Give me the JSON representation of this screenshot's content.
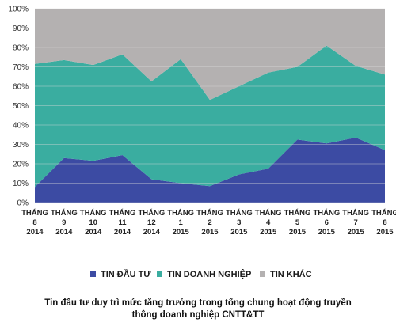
{
  "chart_data": {
    "type": "area",
    "stacked": true,
    "categories": [
      [
        "THÁNG",
        "8",
        "2014"
      ],
      [
        "THÁNG",
        "9",
        "2014"
      ],
      [
        "THÁNG",
        "10",
        "2014"
      ],
      [
        "THÁNG",
        "11",
        "2014"
      ],
      [
        "THÁNG",
        "12",
        "2014"
      ],
      [
        "THÁNG",
        "1",
        "2015"
      ],
      [
        "THÁNG",
        "2",
        "2015"
      ],
      [
        "THÁNG",
        "3",
        "2015"
      ],
      [
        "THÁNG",
        "4",
        "2015"
      ],
      [
        "THÁNG",
        "5",
        "2015"
      ],
      [
        "THÁNG",
        "6",
        "2015"
      ],
      [
        "THÁNG",
        "7",
        "2015"
      ],
      [
        "THÁNG",
        "8",
        "2015"
      ]
    ],
    "series": [
      {
        "name": "TIN ĐẦU TƯ",
        "color": "#3c4ba3",
        "values": [
          8,
          23,
          21.5,
          24.5,
          12,
          10,
          8.5,
          14.5,
          17.5,
          32.5,
          30.5,
          33.5,
          27
        ]
      },
      {
        "name": "TIN DOANH NGHIỆP",
        "color": "#3aada0",
        "values": [
          63.5,
          50.5,
          49.5,
          52,
          50.5,
          64,
          44.5,
          45.5,
          49.5,
          37.5,
          50.5,
          37,
          39
        ]
      },
      {
        "name": "TIN KHÁC",
        "color": "#b4b1b1",
        "values": [
          28.5,
          26.5,
          29,
          23.5,
          37.5,
          26,
          47,
          40,
          33,
          30,
          19,
          29.5,
          34
        ]
      }
    ],
    "ylim": [
      0,
      100
    ],
    "yticks": [
      "0%",
      "10%",
      "20%",
      "30%",
      "40%",
      "50%",
      "60%",
      "70%",
      "80%",
      "90%",
      "100%"
    ],
    "grid": true,
    "legend_position": "bottom"
  },
  "caption": {
    "line1": "Tin đầu tư duy trì mức tăng trưởng trong tổng chung hoạt động truyền",
    "line2": "thông doanh nghiệp CNTT&TT"
  }
}
